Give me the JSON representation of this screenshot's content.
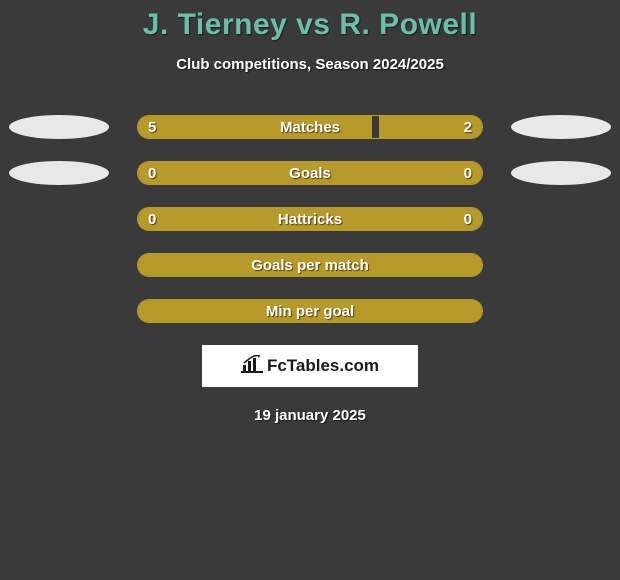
{
  "title": "J. Tierney vs R. Powell",
  "subtitle": "Club competitions, Season 2024/2025",
  "date": "19 january 2025",
  "logo_text": "FcTables.com",
  "colors": {
    "background": "#3a3a3a",
    "title": "#6bbfa8",
    "bar_fill": "#b89a2a",
    "bar_border": "#b89a2a",
    "text": "#ffffff",
    "badge": "#e8e8e8",
    "logo_bg": "#ffffff",
    "logo_text": "#1a1a1a"
  },
  "rows": [
    {
      "label": "Matches",
      "left_value": "5",
      "right_value": "2",
      "left_fill_pct": 68,
      "right_fill_pct": 30,
      "show_left_badge": true,
      "show_right_badge": true,
      "full_fill": false
    },
    {
      "label": "Goals",
      "left_value": "0",
      "right_value": "0",
      "left_fill_pct": 0,
      "right_fill_pct": 0,
      "show_left_badge": true,
      "show_right_badge": true,
      "full_fill": true
    },
    {
      "label": "Hattricks",
      "left_value": "0",
      "right_value": "0",
      "left_fill_pct": 0,
      "right_fill_pct": 0,
      "show_left_badge": false,
      "show_right_badge": false,
      "full_fill": true
    },
    {
      "label": "Goals per match",
      "left_value": "",
      "right_value": "",
      "left_fill_pct": 0,
      "right_fill_pct": 0,
      "show_left_badge": false,
      "show_right_badge": false,
      "full_fill": true
    },
    {
      "label": "Min per goal",
      "left_value": "",
      "right_value": "",
      "left_fill_pct": 0,
      "right_fill_pct": 0,
      "show_left_badge": false,
      "show_right_badge": false,
      "full_fill": true
    }
  ]
}
